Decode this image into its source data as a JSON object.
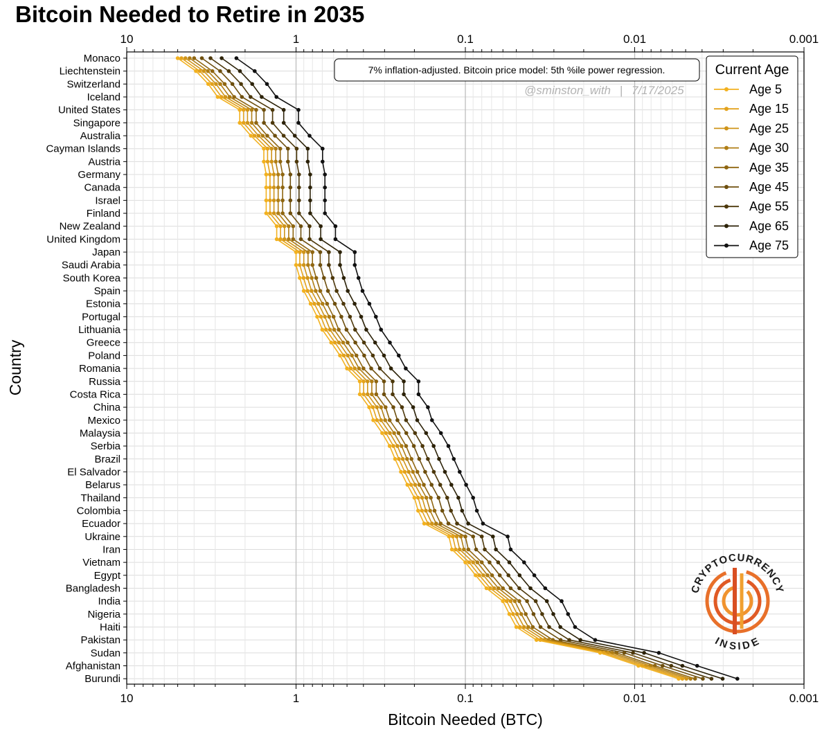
{
  "chart_data": {
    "type": "line",
    "title": "Bitcoin Needed to Retire in 2035",
    "xlabel": "Bitcoin Needed (BTC)",
    "ylabel": "Country",
    "x_scale": "log",
    "x_reversed": true,
    "xlim": [
      10,
      0.001
    ],
    "x_ticks": [
      "10",
      "1",
      "0.1",
      "0.01",
      "0.001"
    ],
    "grid": true,
    "legend_title": "Current Age",
    "legend_position": "top-right",
    "annotation": "7% inflation-adjusted. Bitcoin price model: 5th %ile power regression.",
    "watermark_handle": "@sminston_with",
    "watermark_separator": "|",
    "watermark_date": "7/17/2025",
    "categories": [
      "Monaco",
      "Liechtenstein",
      "Switzerland",
      "Iceland",
      "United States",
      "Singapore",
      "Australia",
      "Cayman Islands",
      "Austria",
      "Germany",
      "Canada",
      "Israel",
      "Finland",
      "New Zealand",
      "United Kingdom",
      "Japan",
      "Saudi Arabia",
      "South Korea",
      "Spain",
      "Estonia",
      "Portugal",
      "Lithuania",
      "Greece",
      "Poland",
      "Romania",
      "Russia",
      "Costa Rica",
      "China",
      "Mexico",
      "Malaysia",
      "Serbia",
      "Brazil",
      "El Salvador",
      "Belarus",
      "Thailand",
      "Colombia",
      "Ecuador",
      "Ukraine",
      "Iran",
      "Vietnam",
      "Egypt",
      "Bangladesh",
      "India",
      "Nigeria",
      "Haiti",
      "Pakistan",
      "Sudan",
      "Afghanistan",
      "Burundi"
    ],
    "base_values_age5": [
      5.0,
      3.9,
      3.3,
      2.9,
      2.15,
      2.15,
      1.85,
      1.55,
      1.55,
      1.5,
      1.5,
      1.5,
      1.5,
      1.3,
      1.3,
      1.0,
      1.0,
      0.95,
      0.9,
      0.82,
      0.75,
      0.7,
      0.62,
      0.55,
      0.5,
      0.42,
      0.42,
      0.37,
      0.35,
      0.31,
      0.28,
      0.26,
      0.24,
      0.22,
      0.2,
      0.19,
      0.175,
      0.125,
      0.12,
      0.1,
      0.087,
      0.075,
      0.06,
      0.055,
      0.05,
      0.038,
      0.016,
      0.0095,
      0.0055
    ],
    "series": [
      {
        "name": "Age 5",
        "color": "#f2b11f",
        "multiplier": 1.0
      },
      {
        "name": "Age 15",
        "color": "#e3a21c",
        "multiplier": 0.95
      },
      {
        "name": "Age 25",
        "color": "#cf9419",
        "multiplier": 0.9
      },
      {
        "name": "Age 30",
        "color": "#b07e15",
        "multiplier": 0.85
      },
      {
        "name": "Age 35",
        "color": "#8f6611",
        "multiplier": 0.8
      },
      {
        "name": "Age 45",
        "color": "#6e4f0e",
        "multiplier": 0.72
      },
      {
        "name": "Age 55",
        "color": "#4d380b",
        "multiplier": 0.64
      },
      {
        "name": "Age 65",
        "color": "#2c2208",
        "multiplier": 0.55
      },
      {
        "name": "Age 75",
        "color": "#111111",
        "multiplier": 0.45
      }
    ]
  },
  "logo": {
    "top_text": "CRYPTOCURRENCY",
    "bottom_text": "INSIDE"
  }
}
